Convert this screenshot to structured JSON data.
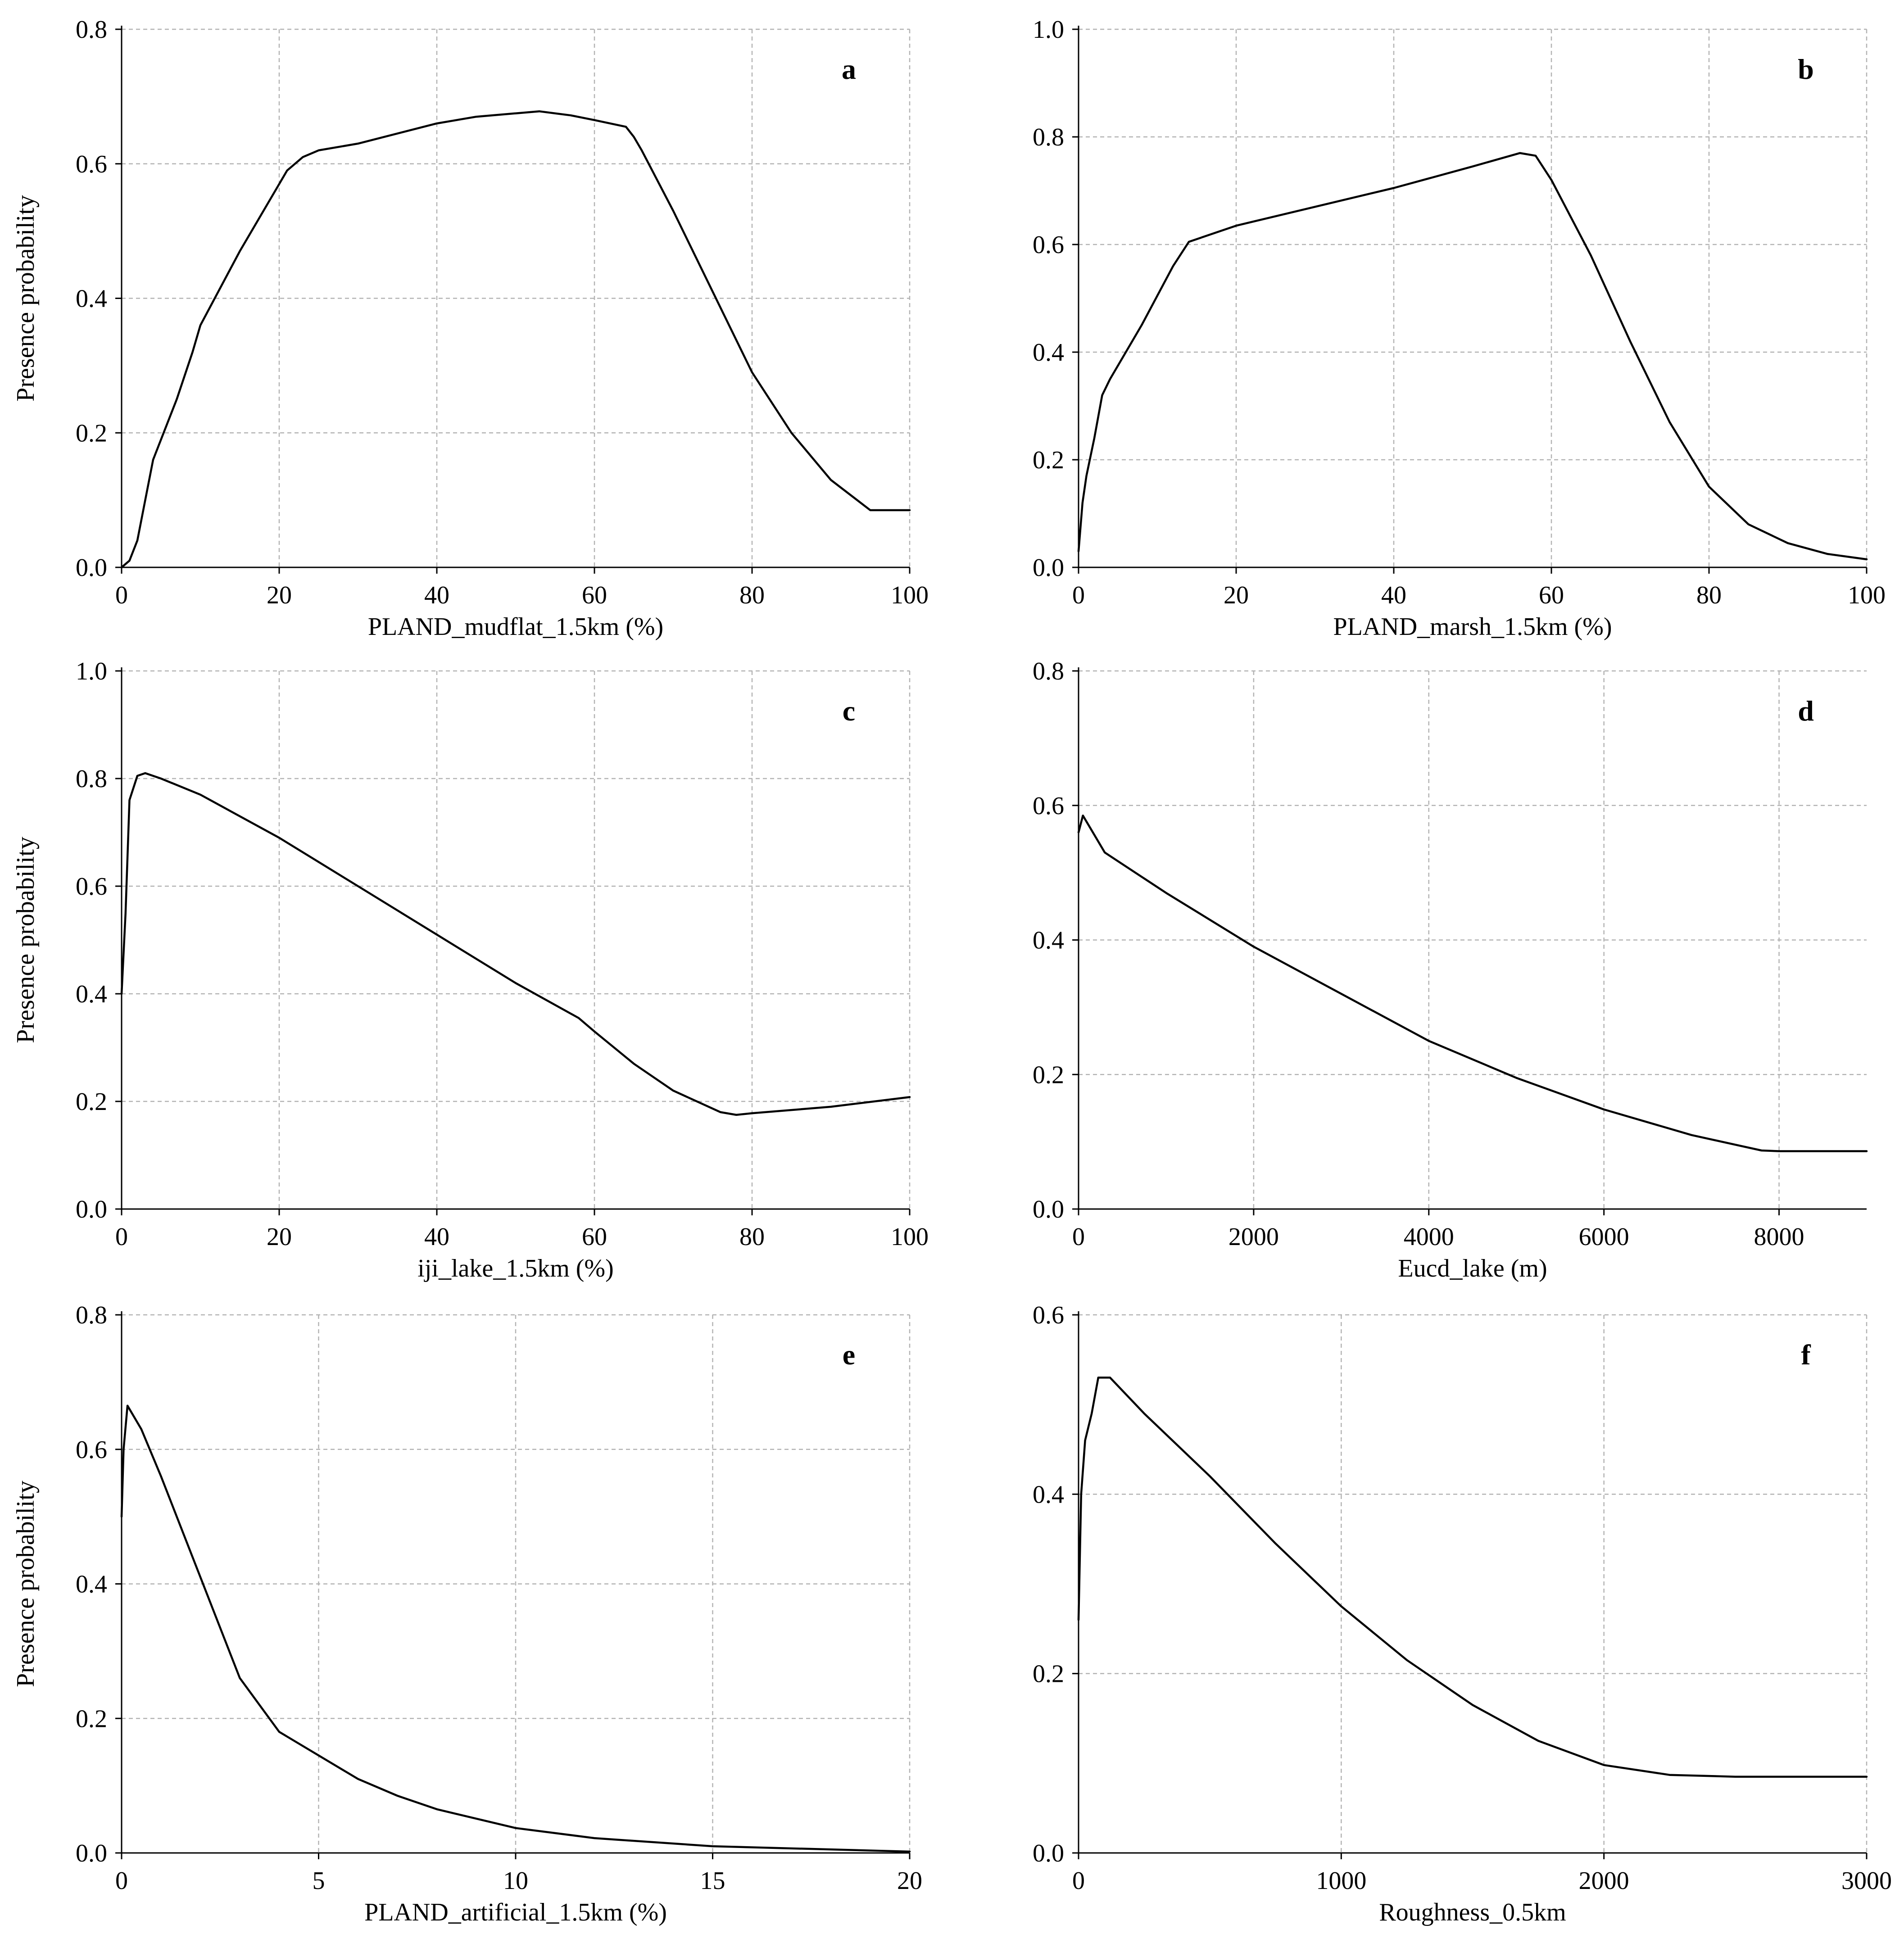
{
  "chart_data": [
    {
      "type": "line",
      "panel": "a",
      "xlabel": "PLAND_mudflat_1.5km (%)",
      "ylabel": "Presence probability",
      "xlim": [
        0,
        100
      ],
      "ylim": [
        0,
        0.8
      ],
      "xticks": [
        0,
        20,
        40,
        60,
        80,
        100
      ],
      "yticks": [
        0.0,
        0.2,
        0.4,
        0.6,
        0.8
      ],
      "xtick_labels": [
        "0",
        "20",
        "40",
        "60",
        "80",
        "100"
      ],
      "ytick_labels": [
        "0.0",
        "0.2",
        "0.4",
        "0.6",
        "0.8"
      ],
      "grid": true,
      "x": [
        0,
        1,
        2,
        3,
        4,
        5,
        7,
        9,
        10,
        15,
        20,
        21,
        23,
        25,
        30,
        40,
        45,
        50,
        53,
        57,
        60,
        64,
        65,
        66,
        70,
        75,
        80,
        85,
        90,
        95,
        100
      ],
      "y": [
        0,
        0.01,
        0.04,
        0.1,
        0.16,
        0.19,
        0.25,
        0.32,
        0.36,
        0.47,
        0.57,
        0.59,
        0.61,
        0.62,
        0.63,
        0.66,
        0.67,
        0.675,
        0.678,
        0.672,
        0.665,
        0.655,
        0.64,
        0.62,
        0.53,
        0.41,
        0.29,
        0.2,
        0.13,
        0.085,
        0.085
      ]
    },
    {
      "type": "line",
      "panel": "b",
      "xlabel": "PLAND_marsh_1.5km (%)",
      "ylabel": "",
      "xlim": [
        0,
        100
      ],
      "ylim": [
        0,
        1.0
      ],
      "xticks": [
        0,
        20,
        40,
        60,
        80,
        100
      ],
      "yticks": [
        0.0,
        0.2,
        0.4,
        0.6,
        0.8,
        1.0
      ],
      "xtick_labels": [
        "0",
        "20",
        "40",
        "60",
        "80",
        "100"
      ],
      "ytick_labels": [
        "0.0",
        "0.2",
        "0.4",
        "0.6",
        "0.8",
        "1.0"
      ],
      "grid": true,
      "x": [
        0,
        0.5,
        1,
        2,
        3,
        4,
        8,
        12,
        14,
        20,
        30,
        40,
        50,
        56,
        58,
        60,
        65,
        70,
        75,
        80,
        85,
        90,
        95,
        100
      ],
      "y": [
        0.03,
        0.12,
        0.17,
        0.24,
        0.32,
        0.35,
        0.45,
        0.56,
        0.605,
        0.635,
        0.67,
        0.705,
        0.745,
        0.77,
        0.765,
        0.72,
        0.58,
        0.42,
        0.27,
        0.15,
        0.08,
        0.045,
        0.025,
        0.015
      ]
    },
    {
      "type": "line",
      "panel": "c",
      "xlabel": "iji_lake_1.5km (%)",
      "ylabel": "Presence probability",
      "xlim": [
        0,
        100
      ],
      "ylim": [
        0,
        1.0
      ],
      "xticks": [
        0,
        20,
        40,
        60,
        80,
        100
      ],
      "yticks": [
        0.0,
        0.2,
        0.4,
        0.6,
        0.8,
        1.0
      ],
      "xtick_labels": [
        "0",
        "20",
        "40",
        "60",
        "80",
        "100"
      ],
      "ytick_labels": [
        "0.0",
        "0.2",
        "0.4",
        "0.6",
        "0.8",
        "1.0"
      ],
      "grid": true,
      "x": [
        0,
        0.5,
        1,
        2,
        3,
        5,
        10,
        20,
        30,
        40,
        50,
        58,
        60,
        65,
        70,
        76,
        78,
        80,
        90,
        100
      ],
      "y": [
        0.4,
        0.55,
        0.76,
        0.805,
        0.81,
        0.8,
        0.77,
        0.69,
        0.6,
        0.51,
        0.42,
        0.355,
        0.33,
        0.27,
        0.22,
        0.18,
        0.175,
        0.178,
        0.19,
        0.208
      ]
    },
    {
      "type": "line",
      "panel": "d",
      "xlabel": "Eucd_lake (m)",
      "ylabel": "",
      "xlim": [
        0,
        9000
      ],
      "ylim": [
        0,
        0.8
      ],
      "xticks": [
        0,
        2000,
        4000,
        6000,
        8000
      ],
      "yticks": [
        0.0,
        0.2,
        0.4,
        0.6,
        0.8
      ],
      "xtick_labels": [
        "0",
        "2000",
        "4000",
        "6000",
        "8000"
      ],
      "ytick_labels": [
        "0.0",
        "0.2",
        "0.4",
        "0.6",
        "0.8"
      ],
      "grid": true,
      "x": [
        0,
        50,
        300,
        1000,
        2000,
        3000,
        4000,
        5000,
        6000,
        7000,
        7800,
        8000,
        9000
      ],
      "y": [
        0.56,
        0.585,
        0.53,
        0.47,
        0.39,
        0.32,
        0.25,
        0.195,
        0.148,
        0.11,
        0.087,
        0.086,
        0.086
      ]
    },
    {
      "type": "line",
      "panel": "e",
      "xlabel": "PLAND_artificial_1.5km (%)",
      "ylabel": "Presence probability",
      "xlim": [
        0,
        20
      ],
      "ylim": [
        0,
        0.8
      ],
      "xticks": [
        0,
        5,
        10,
        15,
        20
      ],
      "yticks": [
        0.0,
        0.2,
        0.4,
        0.6,
        0.8
      ],
      "xtick_labels": [
        "0",
        "5",
        "10",
        "15",
        "20"
      ],
      "ytick_labels": [
        "0.0",
        "0.2",
        "0.4",
        "0.6",
        "0.8"
      ],
      "grid": true,
      "x": [
        0,
        0.05,
        0.15,
        0.5,
        1,
        2,
        3,
        4,
        5,
        6,
        7,
        8,
        10,
        12,
        15,
        20
      ],
      "y": [
        0.5,
        0.6,
        0.665,
        0.63,
        0.56,
        0.41,
        0.26,
        0.18,
        0.145,
        0.11,
        0.085,
        0.065,
        0.037,
        0.022,
        0.01,
        0.002
      ]
    },
    {
      "type": "line",
      "panel": "f",
      "xlabel": "Roughness_0.5km",
      "ylabel": "",
      "xlim": [
        0,
        3000
      ],
      "ylim": [
        0,
        0.6
      ],
      "xticks": [
        0,
        1000,
        2000,
        3000
      ],
      "yticks": [
        0.0,
        0.2,
        0.4,
        0.6
      ],
      "xtick_labels": [
        "0",
        "1000",
        "2000",
        "3000"
      ],
      "ytick_labels": [
        "0.0",
        "0.2",
        "0.4",
        "0.6"
      ],
      "grid": true,
      "x": [
        0,
        10,
        25,
        50,
        75,
        120,
        250,
        500,
        750,
        1000,
        1250,
        1500,
        1750,
        2000,
        2250,
        2500,
        3000
      ],
      "y": [
        0.26,
        0.4,
        0.46,
        0.49,
        0.53,
        0.53,
        0.49,
        0.42,
        0.345,
        0.275,
        0.215,
        0.165,
        0.125,
        0.098,
        0.087,
        0.085,
        0.085
      ]
    }
  ]
}
